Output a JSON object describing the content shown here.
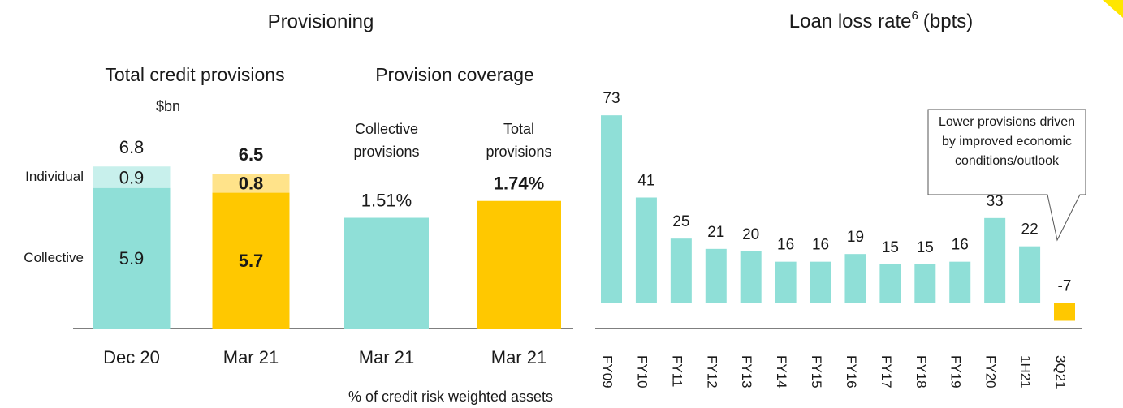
{
  "headings": {
    "left": "Provisioning",
    "right": "Loan loss rate",
    "right_sup": "6",
    "right_unit": "(bpts)"
  },
  "chart_data": [
    {
      "type": "stacked_bar",
      "title": "Total credit provisions",
      "subtitle": "$bn",
      "categories": [
        "Dec 20",
        "Mar 21"
      ],
      "series": [
        {
          "name": "Collective",
          "values": [
            5.9,
            5.7
          ],
          "colors": [
            "#8fdfd7",
            "#ffc800"
          ]
        },
        {
          "name": "Individual",
          "values": [
            0.9,
            0.8
          ],
          "colors": [
            "#c8f0ec",
            "#ffe38a"
          ]
        }
      ],
      "totals": [
        6.8,
        6.5
      ],
      "ylim": [
        0,
        8
      ]
    },
    {
      "type": "bar",
      "title": "Provision coverage",
      "category_headers": [
        "Collective provisions",
        "Total provisions"
      ],
      "categories": [
        "Mar 21",
        "Mar 21"
      ],
      "values": [
        1.51,
        1.74
      ],
      "value_labels": [
        "1.51%",
        "1.74%"
      ],
      "colors": [
        "#8fdfd7",
        "#ffc800"
      ],
      "footnote": "% of credit risk weighted assets",
      "ylim": [
        0,
        2.6
      ]
    },
    {
      "type": "bar",
      "categories": [
        "FY09",
        "FY10",
        "FY11",
        "FY12",
        "FY13",
        "FY14",
        "FY15",
        "FY16",
        "FY17",
        "FY18",
        "FY19",
        "FY20",
        "1H21",
        "3Q21"
      ],
      "values": [
        73,
        41,
        25,
        21,
        20,
        16,
        16,
        19,
        15,
        15,
        16,
        33,
        22,
        -7
      ],
      "colors": [
        "#8fdfd7",
        "#8fdfd7",
        "#8fdfd7",
        "#8fdfd7",
        "#8fdfd7",
        "#8fdfd7",
        "#8fdfd7",
        "#8fdfd7",
        "#8fdfd7",
        "#8fdfd7",
        "#8fdfd7",
        "#8fdfd7",
        "#8fdfd7",
        "#ffc800"
      ],
      "annotation": "Lower provisions driven by improved economic conditions/outlook",
      "ylim": [
        -10,
        80
      ]
    }
  ]
}
